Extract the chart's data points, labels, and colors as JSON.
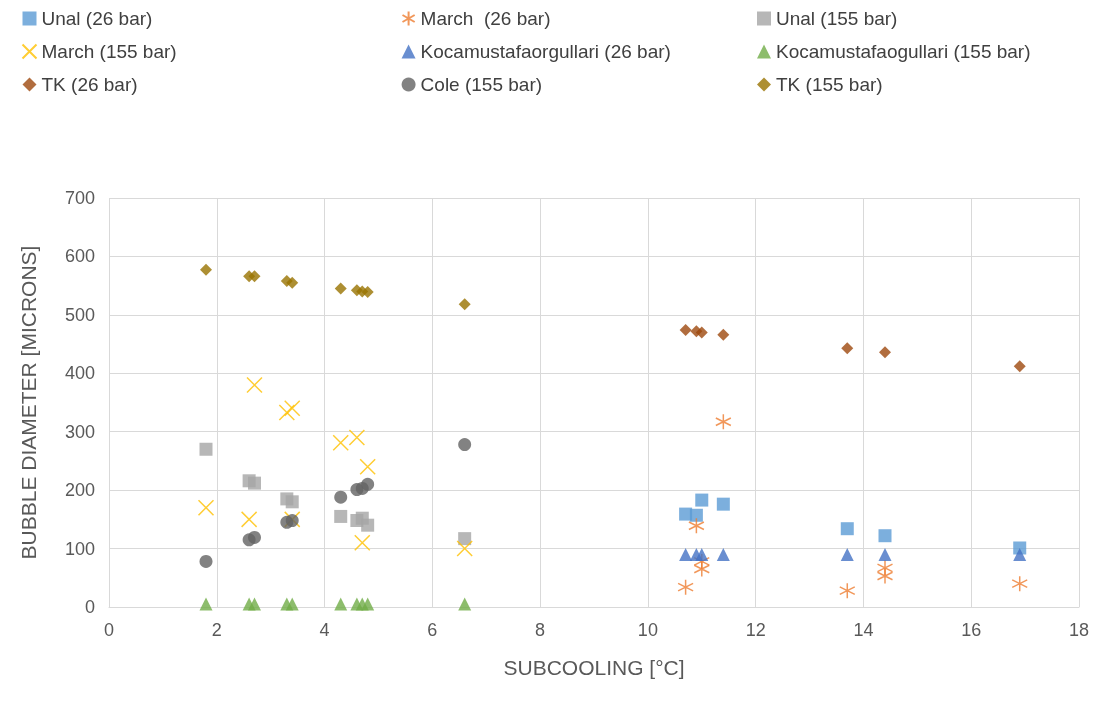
{
  "chart_data": {
    "type": "scatter",
    "xlabel": "SUBCOOLING [°C]",
    "ylabel": "BUBBLE DIAMETER [MICRONS]",
    "xlim": [
      0,
      18
    ],
    "xticks": [
      0,
      2,
      4,
      6,
      8,
      10,
      12,
      14,
      16,
      18
    ],
    "ylim": [
      0,
      700
    ],
    "yticks": [
      0,
      100,
      200,
      300,
      400,
      500,
      600,
      700
    ],
    "grid": true,
    "legend": "top",
    "series": [
      {
        "name": "Unal (26 bar)",
        "color": "#5b9bd5",
        "marker": "square",
        "x": [
          10.7,
          10.9,
          11.0,
          11.4,
          13.7,
          14.4,
          16.9
        ],
        "values": [
          159,
          157,
          183,
          176,
          134,
          122,
          101
        ]
      },
      {
        "name": "March  (26 bar)",
        "color": "#ed7d31",
        "x": [
          10.7,
          10.9,
          11.0,
          11.0,
          11.4,
          13.7,
          14.4,
          14.4,
          16.9
        ],
        "values": [
          34,
          139,
          78,
          65,
          317,
          28,
          67,
          53,
          40
        ]
      },
      {
        "name": "Unal (155 bar)",
        "color": "#a5a5a5",
        "marker": "square",
        "x": [
          1.8,
          2.6,
          2.7,
          3.3,
          3.4,
          4.3,
          4.6,
          4.7,
          4.8,
          6.6
        ],
        "values": [
          270,
          216,
          212,
          185,
          180,
          155,
          148,
          152,
          140,
          117
        ]
      },
      {
        "name": "March (155 bar)",
        "color": "#ffc000",
        "marker": "cross",
        "x": [
          1.8,
          2.6,
          2.7,
          3.3,
          3.4,
          3.4,
          4.3,
          4.6,
          4.7,
          4.8,
          6.6
        ],
        "values": [
          170,
          150,
          380,
          333,
          340,
          150,
          281,
          290,
          110,
          240,
          100
        ]
      },
      {
        "name": "Kocamustafaorgullari (26 bar)",
        "color": "#4472c4",
        "marker": "triangle",
        "x": [
          10.7,
          10.9,
          11.0,
          11.4,
          13.7,
          14.4,
          16.9
        ],
        "values": [
          90,
          90,
          90,
          90,
          90,
          90,
          90
        ]
      },
      {
        "name": "Kocamustafaogullari (155 bar)",
        "color": "#70ad47",
        "marker": "triangle",
        "x": [
          1.8,
          2.6,
          2.7,
          3.3,
          3.4,
          4.3,
          4.6,
          4.7,
          4.8,
          6.6
        ],
        "values": [
          5,
          5,
          5,
          5,
          5,
          5,
          5,
          5,
          5,
          5
        ]
      },
      {
        "name": "TK (26 bar)",
        "color": "#9e480e",
        "marker": "diamond",
        "x": [
          10.7,
          10.9,
          11.0,
          11.4,
          13.7,
          14.4,
          16.9
        ],
        "values": [
          474,
          472,
          470,
          466,
          443,
          436,
          412
        ]
      },
      {
        "name": "Cole (155 bar)",
        "color": "#636363",
        "marker": "circle",
        "x": [
          1.8,
          2.6,
          2.7,
          3.3,
          3.4,
          4.3,
          4.6,
          4.7,
          4.8,
          6.6
        ],
        "values": [
          78,
          115,
          119,
          145,
          148,
          188,
          201,
          203,
          210,
          278
        ]
      },
      {
        "name": "TK (155 bar)",
        "color": "#997300",
        "marker": "diamond",
        "x": [
          1.8,
          2.6,
          2.7,
          3.3,
          3.4,
          4.3,
          4.6,
          4.7,
          4.8,
          6.6
        ],
        "values": [
          577,
          566,
          566,
          558,
          555,
          545,
          542,
          540,
          539,
          518
        ]
      }
    ]
  }
}
